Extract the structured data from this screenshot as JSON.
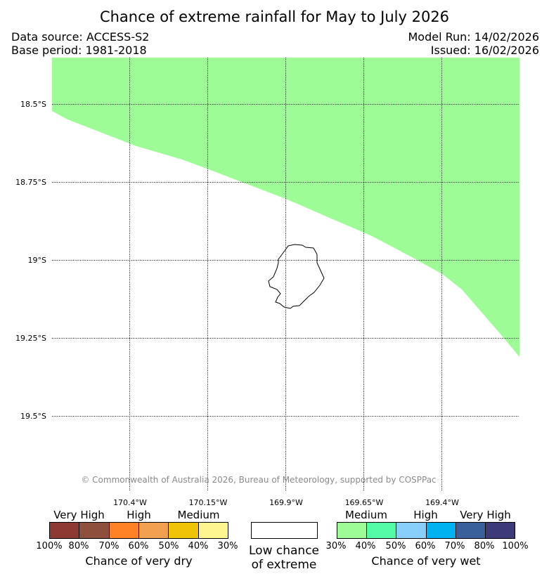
{
  "header": {
    "title": "Chance of extreme rainfall for May to July 2026",
    "data_source": "Data source: ACCESS-S2",
    "base_period": "Base period: 1981-2018",
    "model_run": "Model Run: 14/02/2026",
    "issued": "Issued: 16/02/2026"
  },
  "map": {
    "latitudes": [
      "18.5°S",
      "18.75°S",
      "19°S",
      "19.25°S",
      "19.5°S"
    ],
    "longitudes": [
      "170.4°W",
      "170.15°W",
      "169.9°W",
      "169.65°W",
      "169.4°W"
    ],
    "wet_region_category": "Medium chance of very wet (30–40%)",
    "wet_region_color": "#9efc97",
    "copyright": "© Commonwealth of Australia 2026, Bureau of Meteorology, supported by COSPPac"
  },
  "legend": {
    "dry": {
      "categories": [
        "Very High",
        "High",
        "Medium"
      ],
      "colors": [
        "#8c3a32",
        "#8e4f3c",
        "#ff8326",
        "#f0a04f",
        "#efc308",
        "#fff58e"
      ],
      "ticks": [
        "100%",
        "80%",
        "70%",
        "60%",
        "50%",
        "40%",
        "30%"
      ],
      "label": "Chance of very dry"
    },
    "neutral": {
      "color": "#ffffff",
      "label_line1": "Low chance",
      "label_line2": "of extreme"
    },
    "wet": {
      "categories": [
        "Medium",
        "High",
        "Very High"
      ],
      "colors": [
        "#9efc97",
        "#55fca7",
        "#87cefa",
        "#00b2ef",
        "#3a609b",
        "#3c3a78"
      ],
      "ticks": [
        "30%",
        "40%",
        "50%",
        "60%",
        "70%",
        "80%",
        "100%"
      ],
      "label": "Chance of very wet"
    }
  }
}
